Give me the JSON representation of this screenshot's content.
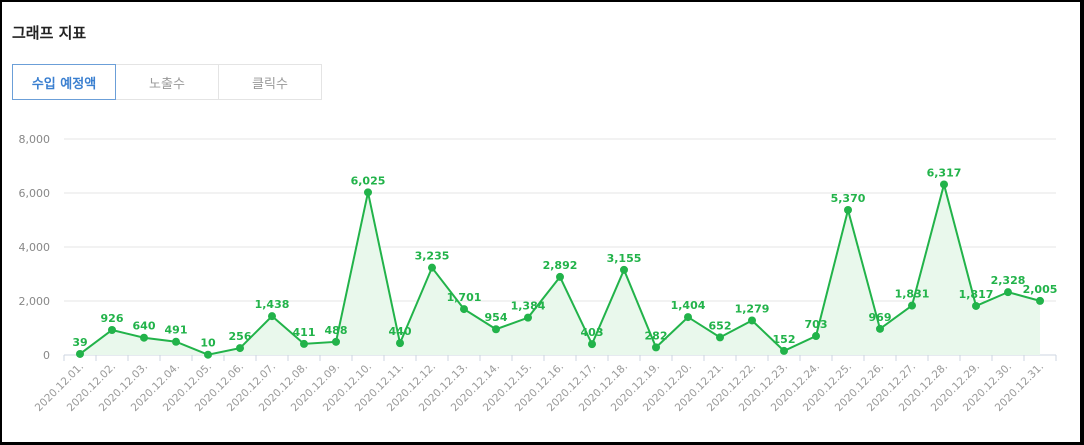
{
  "header": {
    "title": "그래프 지표"
  },
  "tabs": [
    {
      "label": "수입 예정액",
      "active": true
    },
    {
      "label": "노출수",
      "active": false
    },
    {
      "label": "클릭수",
      "active": false
    }
  ],
  "chart_data": {
    "type": "area",
    "categories": [
      "2020.12.01.",
      "2020.12.02.",
      "2020.12.03.",
      "2020.12.04.",
      "2020.12.05.",
      "2020.12.06.",
      "2020.12.07.",
      "2020.12.08.",
      "2020.12.09.",
      "2020.12.10.",
      "2020.12.11.",
      "2020.12.12.",
      "2020.12.13.",
      "2020.12.14.",
      "2020.12.15.",
      "2020.12.16.",
      "2020.12.17.",
      "2020.12.18.",
      "2020.12.19.",
      "2020.12.20.",
      "2020.12.21.",
      "2020.12.22.",
      "2020.12.23.",
      "2020.12.24.",
      "2020.12.25.",
      "2020.12.26.",
      "2020.12.27.",
      "2020.12.28.",
      "2020.12.29.",
      "2020.12.30.",
      "2020.12.31."
    ],
    "values": [
      39,
      926,
      640,
      491,
      10,
      256,
      1438,
      411,
      488,
      6025,
      440,
      3235,
      1701,
      954,
      1384,
      2892,
      403,
      3155,
      282,
      1404,
      652,
      1279,
      152,
      703,
      5370,
      969,
      1831,
      6317,
      1817,
      2328,
      2005
    ],
    "ylim": [
      0,
      8000
    ],
    "yticks": [
      "0",
      "2,000",
      "4,000",
      "6,000",
      "8,000"
    ],
    "grid": true,
    "data_labels": true,
    "colors": {
      "line": "#22b34a",
      "fill": "#e9f8ec"
    }
  }
}
